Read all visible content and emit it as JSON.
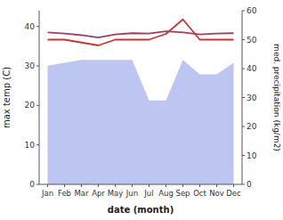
{
  "chart_data": {
    "type": "line",
    "categories": [
      "Jan",
      "Feb",
      "Mar",
      "Apr",
      "May",
      "Jun",
      "Jul",
      "Aug",
      "Sep",
      "Oct",
      "Nov",
      "Dec"
    ],
    "series": [
      {
        "type": "area",
        "axis": "y2",
        "color": "#b0bcee",
        "values": [
          41,
          42,
          43,
          43,
          43,
          43,
          29,
          29,
          43,
          38,
          38,
          42
        ]
      },
      {
        "type": "line",
        "axis": "y",
        "color": "#9a4060",
        "values": [
          38.5,
          38.2,
          37.8,
          37.2,
          38.0,
          38.3,
          38.2,
          38.8,
          38.5,
          38.0,
          38.2,
          38.3
        ]
      },
      {
        "type": "line",
        "axis": "y2",
        "color": "#cc3333",
        "values": [
          50,
          50,
          49,
          48,
          50,
          50,
          50,
          52,
          57,
          50,
          50,
          50
        ]
      }
    ],
    "xlabel": "date (month)",
    "ylabel": "max temp (C)",
    "y2label": "med. precipitation (kg/m2)",
    "ylim": [
      0,
      44
    ],
    "yticks": [
      0,
      10,
      20,
      30,
      40
    ],
    "y2lim": [
      0,
      60
    ],
    "y2ticks": [
      0,
      10,
      20,
      30,
      40,
      50,
      60
    ],
    "grid": false
  }
}
